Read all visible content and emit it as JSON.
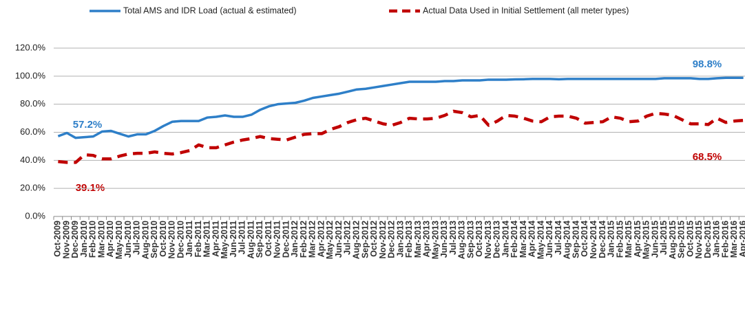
{
  "chart_data": {
    "type": "line",
    "categories": [
      "Oct-2009",
      "Nov-2009",
      "Dec-2009",
      "Jan-2010",
      "Feb-2010",
      "Mar-2010",
      "Apr-2010",
      "May-2010",
      "Jun-2010",
      "Jul-2010",
      "Aug-2010",
      "Sep-2010",
      "Oct-2010",
      "Nov-2010",
      "Dec-2010",
      "Jan-2011",
      "Feb-2011",
      "Mar-2011",
      "Apr-2011",
      "May-2011",
      "Jun-2011",
      "Jul-2011",
      "Aug-2011",
      "Sep-2011",
      "Oct-2011",
      "Nov-2011",
      "Dec-2011",
      "Jan-2012",
      "Feb-2012",
      "Mar-2012",
      "Apr-2012",
      "May-2012",
      "Jun-2012",
      "Jul-2012",
      "Aug-2012",
      "Sep-2012",
      "Oct-2012",
      "Nov-2012",
      "Dec-2012",
      "Jan-2013",
      "Feb-2013",
      "Mar-2013",
      "Apr-2013",
      "May-2013",
      "Jun-2013",
      "Jul-2013",
      "Aug-2013",
      "Sep-2013",
      "Oct-2013",
      "Nov-2013",
      "Dec-2013",
      "Jan-2014",
      "Feb-2014",
      "Mar-2014",
      "Apr-2014",
      "May-2014",
      "Jun-2014",
      "Jul-2014",
      "Aug-2014",
      "Sep-2014",
      "Oct-2014",
      "Nov-2014",
      "Dec-2014",
      "Jan-2015",
      "Feb-2015",
      "Mar-2015",
      "Apr-2015",
      "May-2015",
      "Jun-2015",
      "Jul-2015",
      "Aug-2015",
      "Sep-2015",
      "Oct-2015",
      "Nov-2015",
      "Dec-2015",
      "Jan-2016",
      "Feb-2016",
      "Mar-2016",
      "Apr-2016"
    ],
    "series": [
      {
        "name": "Total AMS and IDR Load (actual & estimated)",
        "color": "#2e7fc8",
        "dash": false,
        "values": [
          57.2,
          59.5,
          56,
          56.5,
          57,
          60.5,
          61,
          59,
          57,
          58.5,
          58.5,
          61,
          64.5,
          67.5,
          68,
          68,
          68,
          70.5,
          71,
          72,
          71,
          71,
          72.5,
          76,
          78.5,
          80,
          80.5,
          81,
          82.5,
          84.5,
          85.5,
          86.5,
          87.5,
          89,
          90.5,
          91,
          92,
          93,
          94,
          95,
          96,
          96,
          96,
          96,
          96.5,
          96.5,
          97,
          97,
          97,
          97.5,
          97.5,
          97.5,
          97.7,
          97.8,
          98,
          98,
          98,
          97.8,
          98,
          98,
          98,
          98,
          98,
          98,
          98,
          98,
          98,
          98,
          98,
          98.5,
          98.5,
          98.5,
          98.5,
          98,
          98,
          98.5,
          98.8,
          98.8,
          98.8
        ]
      },
      {
        "name": "Actual Data Used in Initial Settlement (all meter types)",
        "color": "#c00000",
        "dash": true,
        "values": [
          39.1,
          38.5,
          38.5,
          44,
          43.5,
          41,
          41,
          43,
          44.5,
          45,
          45,
          46,
          45,
          44.5,
          45.5,
          47,
          51,
          49,
          49,
          51,
          53,
          54.5,
          55.5,
          57,
          55.5,
          55,
          54.5,
          56.5,
          58.5,
          59,
          59,
          62,
          64,
          67,
          69,
          70,
          68,
          66,
          65,
          67,
          70,
          69.5,
          69.5,
          70,
          72,
          75,
          74,
          71,
          72,
          65,
          68,
          72,
          71.5,
          70,
          68,
          67.5,
          71,
          71.5,
          71.5,
          70,
          66.5,
          67,
          67.5,
          71,
          70,
          67.5,
          68,
          71.5,
          73.5,
          73,
          72,
          69,
          66,
          66,
          65.5,
          70,
          67,
          68,
          68.5
        ]
      }
    ],
    "annotations": [
      "57.2%",
      "39.1%",
      "98.8%",
      "68.5%"
    ],
    "ylim": [
      0,
      120
    ],
    "yticks": [
      {
        "value": 0,
        "label": "0.0%"
      },
      {
        "value": 20,
        "label": "20.0%"
      },
      {
        "value": 40,
        "label": "40.0%"
      },
      {
        "value": 60,
        "label": "60.0%"
      },
      {
        "value": 80,
        "label": "80.0%"
      },
      {
        "value": 100,
        "label": "100.0%"
      },
      {
        "value": 120,
        "label": "120.0%"
      }
    ],
    "grid": true
  }
}
